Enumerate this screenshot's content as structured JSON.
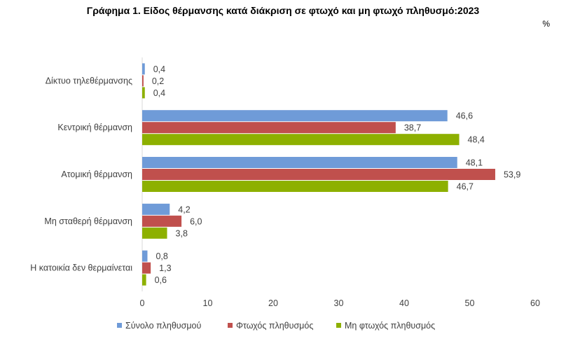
{
  "chart_data": {
    "type": "bar",
    "orientation": "horizontal",
    "title": "Γράφημα 1. Είδος θέρμανσης κατά διάκριση σε φτωχό και μη φτωχό πληθυσμό:2023",
    "unit": "%",
    "categories": [
      "Δίκτυο τηλεθέρμανσης",
      "Κεντρική θέρμανση",
      "Ατομική θέρμανση",
      "Μη σταθερή θέρμανση",
      "Η κατοικία δεν θερμαίνεται"
    ],
    "series": [
      {
        "name": "Σύνολο πληθυσμού",
        "color": "#6f9bd8",
        "values": [
          0.4,
          46.6,
          48.1,
          4.2,
          0.8
        ],
        "labels": [
          "0,4",
          "46,6",
          "48,1",
          "4,2",
          "0,8"
        ]
      },
      {
        "name": "Φτωχός πληθυσμός",
        "color": "#c0504d",
        "values": [
          0.2,
          38.7,
          53.9,
          6.0,
          1.3
        ],
        "labels": [
          "0,2",
          "38,7",
          "53,9",
          "6,0",
          "1,3"
        ]
      },
      {
        "name": "Μη φτωχός πληθυσμός",
        "color": "#8db000",
        "values": [
          0.4,
          48.4,
          46.7,
          3.8,
          0.6
        ],
        "labels": [
          "0,4",
          "48,4",
          "46,7",
          "3,8",
          "0,6"
        ]
      }
    ],
    "xlim": [
      0,
      60
    ],
    "xticks": [
      "0",
      "10",
      "20",
      "30",
      "40",
      "50",
      "60"
    ],
    "grid": false,
    "legend_position": "bottom"
  }
}
